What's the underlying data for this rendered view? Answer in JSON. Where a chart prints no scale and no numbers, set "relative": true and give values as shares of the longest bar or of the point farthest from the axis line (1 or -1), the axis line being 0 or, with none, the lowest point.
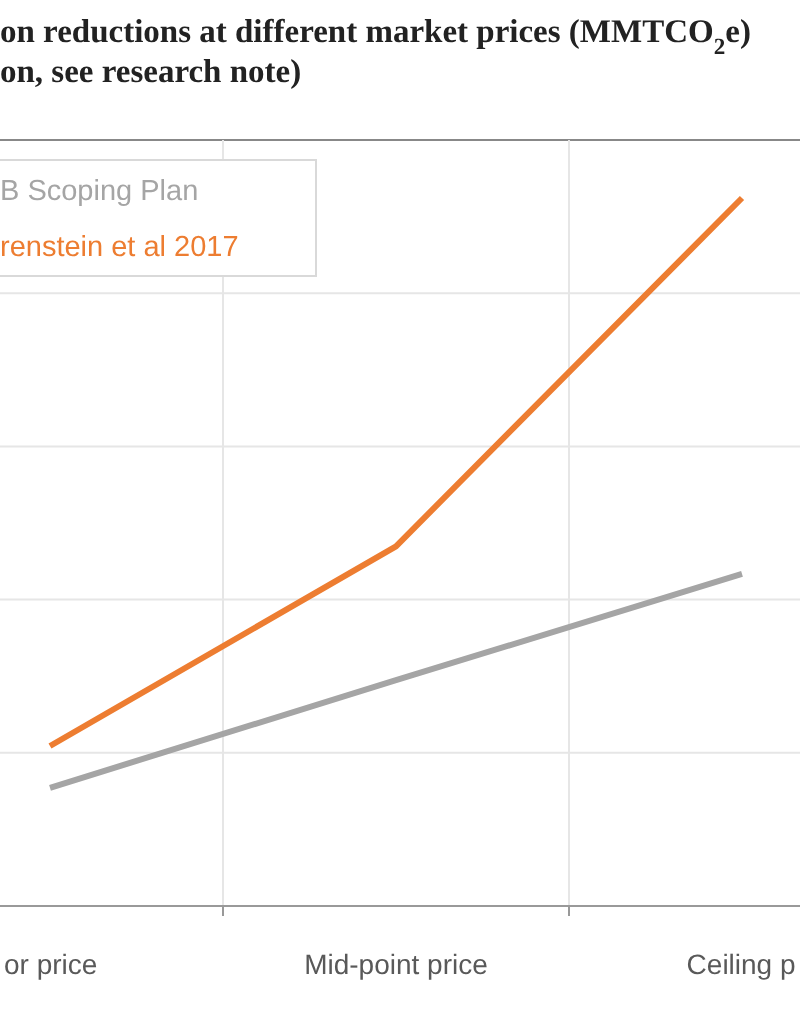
{
  "chart_data": {
    "type": "line",
    "title": "on reductions at different market prices (MMTCO$_{2}$e)",
    "subtitle": "on, see research note)",
    "categories": [
      "or price",
      "Mid-point price",
      "Ceiling p"
    ],
    "relative": true,
    "grid": true,
    "legend": "top left",
    "series": [
      {
        "name": "B Scoping Plan",
        "color": "#a5a5a5",
        "values": [
          0.167,
          0.319,
          0.469
        ]
      },
      {
        "name": "renstein et al 2017",
        "color": "#ed7d31",
        "values": [
          0.226,
          0.508,
          1
        ]
      }
    ]
  }
}
